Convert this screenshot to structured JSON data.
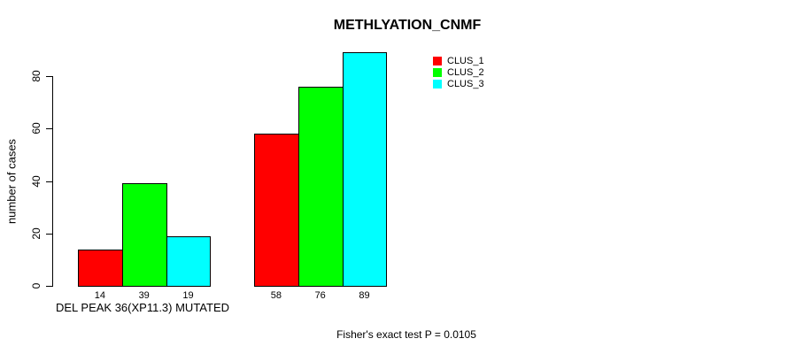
{
  "chart_data": {
    "type": "bar",
    "title": "METHLYATION_CNMF",
    "ylabel": "number of cases",
    "xlabel": "DEL PEAK 36(XP11.3) MUTATED",
    "categories": [
      "",
      ""
    ],
    "series": [
      {
        "name": "CLUS_1",
        "color": "#ff0000",
        "values": [
          14,
          58
        ]
      },
      {
        "name": "CLUS_2",
        "color": "#00ff00",
        "values": [
          39,
          76
        ]
      },
      {
        "name": "CLUS_3",
        "color": "#00ffff",
        "values": [
          19,
          89
        ]
      }
    ],
    "bar_value_labels": [
      [
        14,
        39,
        19
      ],
      [
        58,
        76,
        89
      ]
    ],
    "yticks": [
      0,
      20,
      40,
      60,
      80
    ],
    "ylim": [
      0,
      89
    ],
    "grid": false,
    "legend_position": "top-right",
    "annotation": "Fisher's exact test P = 0.0105"
  }
}
